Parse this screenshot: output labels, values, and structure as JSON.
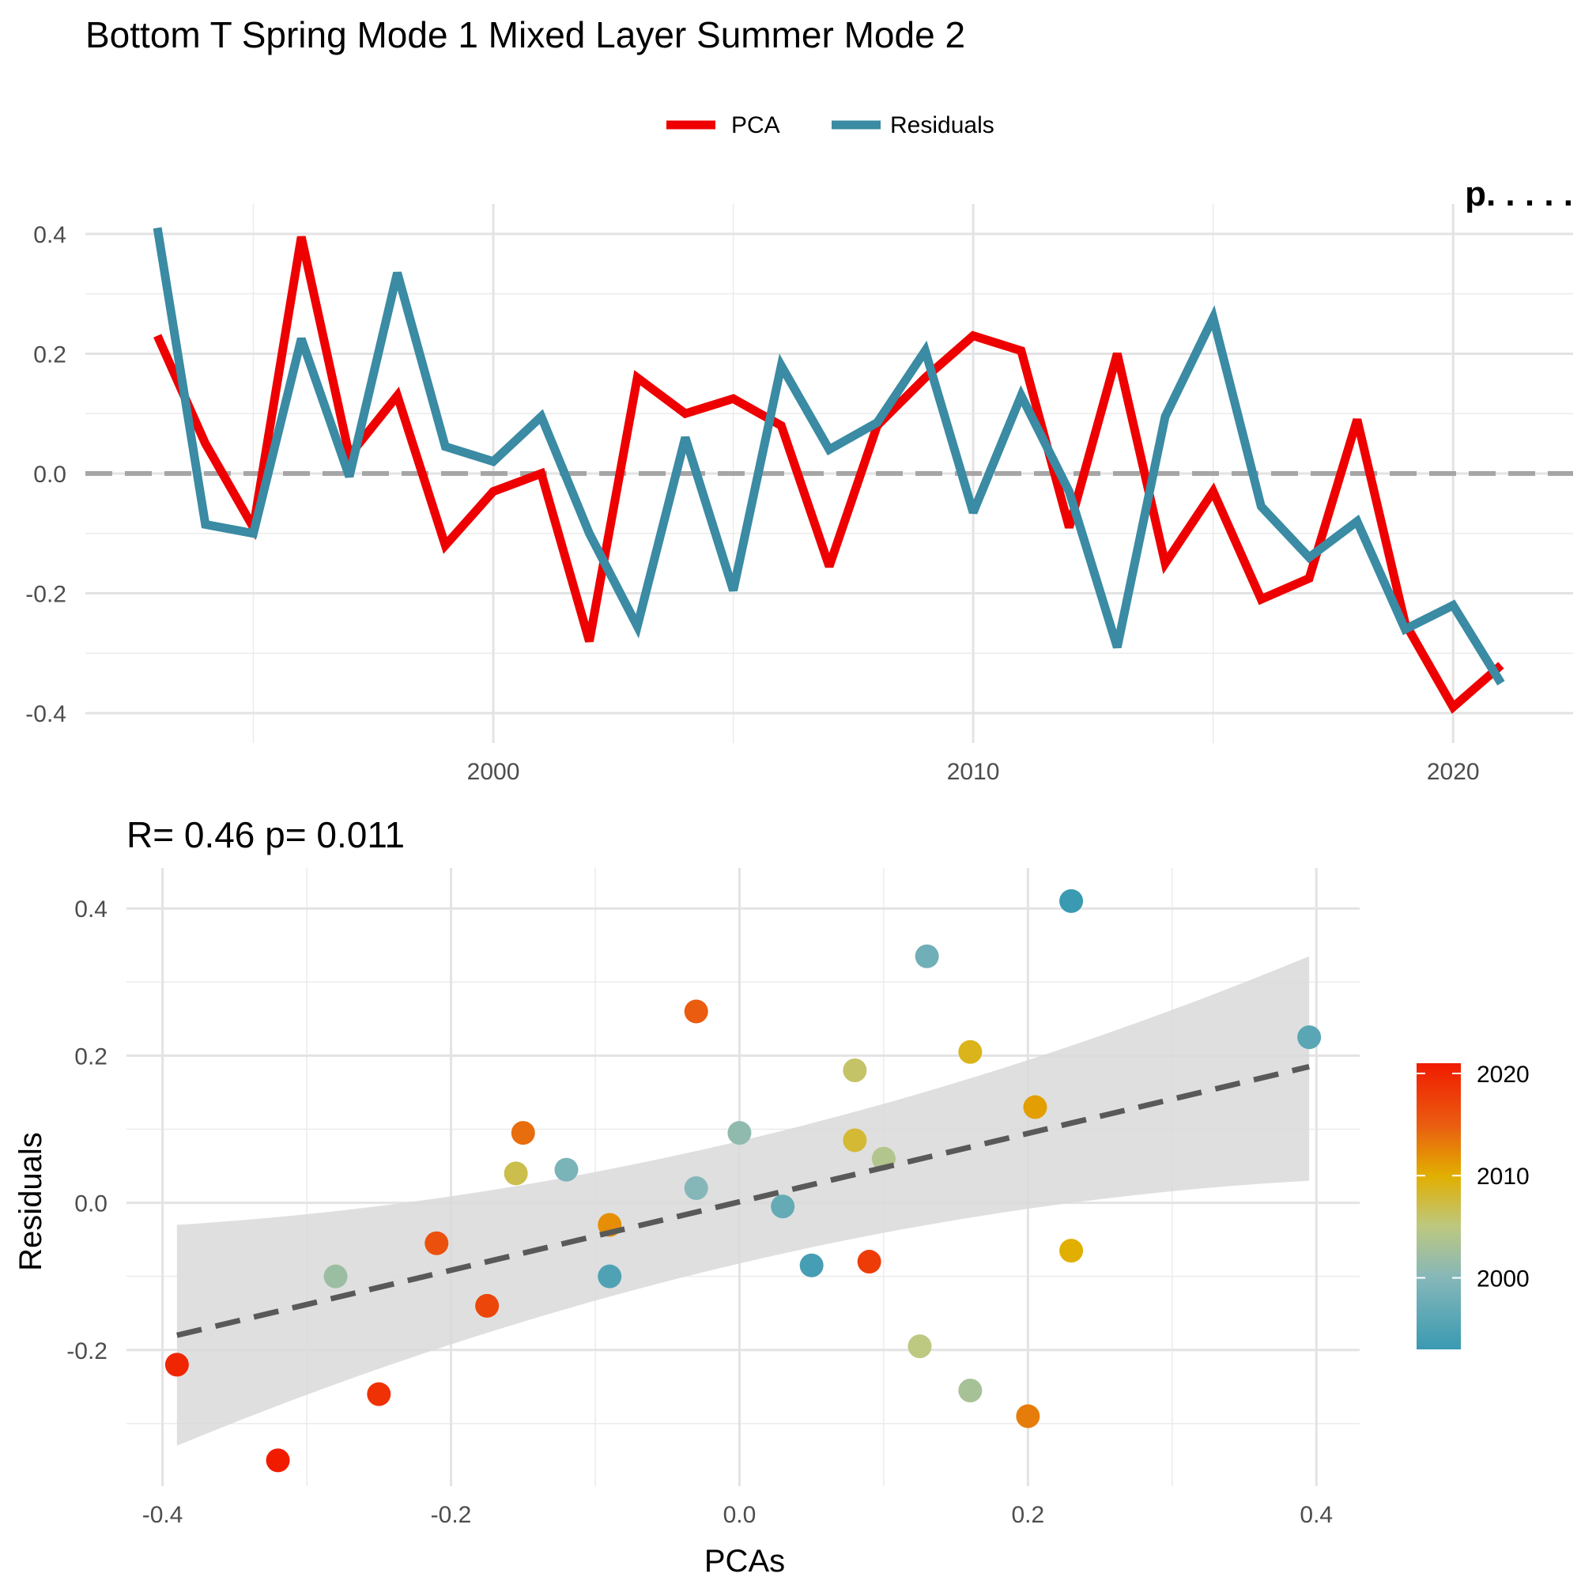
{
  "chart_data": [
    {
      "type": "line",
      "title": "Bottom T Spring Mode 1 Mixed Layer Summer Mode 2",
      "corner_text": "p. . . . .",
      "xlabel": "",
      "ylabel": "",
      "x": [
        1993,
        1994,
        1995,
        1996,
        1997,
        1998,
        1999,
        2000,
        2001,
        2002,
        2003,
        2004,
        2005,
        2006,
        2007,
        2008,
        2009,
        2010,
        2011,
        2012,
        2013,
        2014,
        2015,
        2016,
        2017,
        2018,
        2019,
        2020,
        2021
      ],
      "series": [
        {
          "name": "PCA",
          "color": "#EE0000",
          "values": [
            0.23,
            0.05,
            -0.09,
            0.395,
            0.03,
            0.13,
            -0.12,
            -0.03,
            0.0,
            -0.28,
            0.16,
            0.1,
            0.125,
            0.08,
            -0.155,
            0.08,
            0.16,
            0.23,
            0.205,
            -0.09,
            0.2,
            -0.15,
            -0.03,
            -0.21,
            -0.175,
            0.09,
            -0.25,
            -0.39,
            -0.32
          ]
        },
        {
          "name": "Residuals",
          "color": "#3A8BA3",
          "values": [
            0.41,
            -0.085,
            -0.1,
            0.225,
            -0.005,
            0.335,
            0.045,
            0.02,
            0.095,
            -0.1,
            -0.255,
            0.06,
            -0.195,
            0.18,
            0.04,
            0.085,
            0.205,
            -0.065,
            0.13,
            -0.03,
            -0.29,
            0.095,
            0.26,
            -0.055,
            -0.14,
            -0.08,
            -0.26,
            -0.22,
            -0.35
          ]
        }
      ],
      "reference_line": 0,
      "xlim": [
        1991.5,
        2022.5
      ],
      "ylim": [
        -0.45,
        0.45
      ],
      "xticks": [
        {
          "v": 2000,
          "label": "2000"
        },
        {
          "v": 2010,
          "label": "2010"
        },
        {
          "v": 2020,
          "label": "2020"
        }
      ],
      "yticks": [
        {
          "v": 0.4,
          "label": "0.4"
        },
        {
          "v": 0.2,
          "label": "0.2"
        },
        {
          "v": 0.0,
          "label": "0.0"
        },
        {
          "v": -0.2,
          "label": "-0.2"
        },
        {
          "v": -0.4,
          "label": "-0.4"
        }
      ],
      "legend": {
        "placement": "top-center",
        "items": [
          "PCA",
          "Residuals"
        ]
      },
      "grid": true
    },
    {
      "type": "scatter",
      "title": "R= 0.46  p= 0.011",
      "xlabel": "PCAs",
      "ylabel": "Residuals",
      "xlim": [
        -0.425,
        0.43
      ],
      "ylim": [
        -0.385,
        0.455
      ],
      "xticks": [
        {
          "v": -0.4,
          "label": "-0.4"
        },
        {
          "v": -0.2,
          "label": "-0.2"
        },
        {
          "v": 0.0,
          "label": "0.0"
        },
        {
          "v": 0.2,
          "label": "0.2"
        },
        {
          "v": 0.4,
          "label": "0.4"
        }
      ],
      "yticks": [
        {
          "v": 0.4,
          "label": "0.4"
        },
        {
          "v": 0.2,
          "label": "0.2"
        },
        {
          "v": 0.0,
          "label": "0.0"
        },
        {
          "v": -0.2,
          "label": "-0.2"
        }
      ],
      "points_source": "pairs PCA (x) with Residuals (y) by year from the line chart; colored by year",
      "fit_line": {
        "x": [
          -0.39,
          0.395
        ],
        "y": [
          -0.18,
          0.185
        ],
        "color": "#595959",
        "style": "dashed"
      },
      "confidence_band": {
        "x": [
          -0.39,
          0.395
        ],
        "upper": [
          -0.03,
          0.335
        ],
        "lower": [
          -0.33,
          0.03
        ],
        "color": "#D9D9D9"
      },
      "colorbar": {
        "ticks": [
          {
            "v": 2020,
            "label": "2020"
          },
          {
            "v": 2010,
            "label": "2010"
          },
          {
            "v": 2000,
            "label": "2000"
          }
        ],
        "range": [
          1993,
          2021
        ],
        "stops": [
          {
            "v": 1993,
            "color": "#3A9AB2"
          },
          {
            "v": 2000,
            "color": "#85B7B9"
          },
          {
            "v": 2005,
            "color": "#BDC881"
          },
          {
            "v": 2010,
            "color": "#E1AF00"
          },
          {
            "v": 2015,
            "color": "#EA5C10"
          },
          {
            "v": 2021,
            "color": "#F11B00"
          }
        ]
      },
      "grid": true
    }
  ]
}
